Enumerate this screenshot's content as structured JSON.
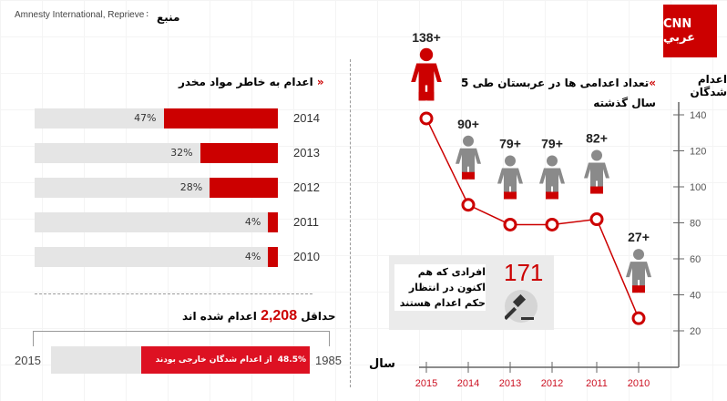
{
  "source": {
    "label": "منبع",
    "text": "Amnesty International, Reprieve"
  },
  "logo": {
    "text": "العربية CNN"
  },
  "drug_chart": {
    "title": "اعدام به خاطر مواد مخدر",
    "rows": [
      {
        "year": "2014",
        "percent": 47,
        "label": "47%"
      },
      {
        "year": "2013",
        "percent": 32,
        "label": "32%"
      },
      {
        "year": "2012",
        "percent": 28,
        "label": "28%"
      },
      {
        "year": "2011",
        "percent": 4,
        "label": "4%"
      },
      {
        "year": "2010",
        "percent": 4,
        "label": "4%"
      }
    ]
  },
  "total": {
    "prefix": "حداقل",
    "number": "2,208",
    "suffix": "اعدام شده اند"
  },
  "foreign": {
    "percent_label": "48.5%",
    "text": "از اعدام شدگان خارجی بودند",
    "start_year": "2015",
    "end_year": "1985"
  },
  "death_row": {
    "number": "171",
    "text": "افرادی که هم اکنون در انتظار حکم اعدام هستند",
    "icon": "gavel-icon"
  },
  "chart_data": {
    "type": "line",
    "title": "تعداد اعدامی ها در عربستان طی 5 سال گذشته",
    "ylabel": "اعدام شدگان",
    "xlabel": "سال",
    "x": [
      "2015",
      "2014",
      "2013",
      "2012",
      "2011",
      "2010"
    ],
    "values": [
      138,
      90,
      79,
      79,
      82,
      27
    ],
    "value_labels": [
      "138+",
      "90+",
      "79+",
      "79+",
      "82+",
      "27+"
    ],
    "yticks": [
      20,
      40,
      60,
      80,
      100,
      120,
      140
    ],
    "ylim": [
      0,
      140
    ],
    "colors": {
      "line": "#cc0000",
      "figure_gray": "#8a8a8a",
      "figure_red": "#cc0000"
    }
  },
  "colors": {
    "accent": "#cc0000",
    "bar_bg": "#e5e5e5"
  }
}
